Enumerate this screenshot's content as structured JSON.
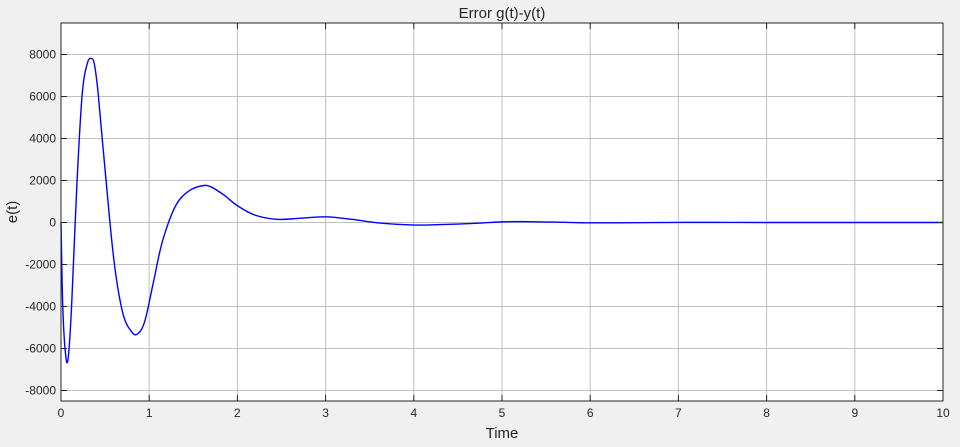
{
  "chart_data": {
    "type": "line",
    "title": "Error g(t)-y(t)",
    "xlabel": "Time",
    "ylabel": "e(t)",
    "xlim": [
      0,
      10
    ],
    "ylim": [
      -8500,
      9500
    ],
    "x_ticks": [
      0,
      1,
      2,
      3,
      4,
      5,
      6,
      7,
      8,
      9,
      10
    ],
    "y_ticks": [
      -8000,
      -6000,
      -4000,
      -2000,
      0,
      2000,
      4000,
      6000,
      8000
    ],
    "grid": true,
    "legend": "none",
    "series": [
      {
        "color": "#0000ff",
        "x": [
          0,
          0.02,
          0.05,
          0.08,
          0.12,
          0.18,
          0.24,
          0.3,
          0.35,
          0.38,
          0.42,
          0.5,
          0.6,
          0.7,
          0.8,
          0.87,
          0.95,
          1.05,
          1.15,
          1.3,
          1.45,
          1.6,
          1.7,
          1.85,
          2.0,
          2.2,
          2.45,
          2.7,
          3.0,
          3.3,
          3.6,
          4.0,
          4.3,
          4.7,
          5.0,
          5.3,
          5.7,
          6.0,
          6.5,
          7.0,
          7.5,
          8.0,
          9.0,
          10.0
        ],
        "y": [
          0,
          -4000,
          -6200,
          -6500,
          -4000,
          1800,
          6100,
          7600,
          7800,
          7500,
          6200,
          2500,
          -1800,
          -4300,
          -5200,
          -5300,
          -4700,
          -2800,
          -900,
          800,
          1500,
          1750,
          1700,
          1300,
          800,
          350,
          150,
          200,
          270,
          150,
          -20,
          -120,
          -100,
          -40,
          30,
          40,
          10,
          -15,
          -10,
          5,
          5,
          0,
          0,
          0
        ]
      }
    ]
  }
}
